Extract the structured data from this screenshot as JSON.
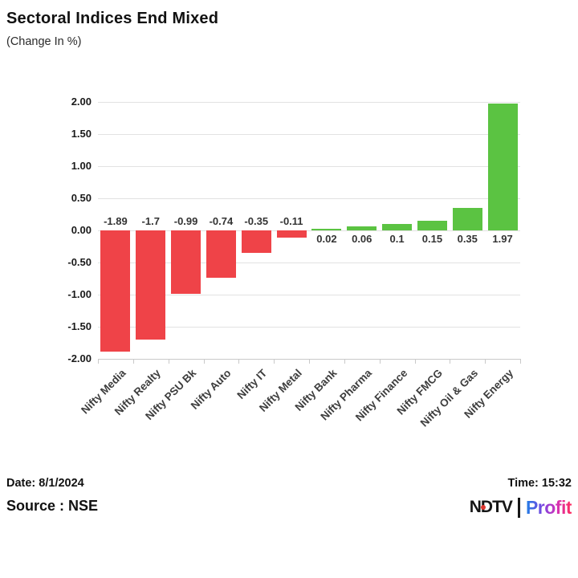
{
  "header": {
    "title": "Sectoral Indices End Mixed",
    "subtitle": "(Change In %)"
  },
  "chart_data": {
    "type": "bar",
    "title": "Sectoral Indices End Mixed",
    "subtitle": "(Change In %)",
    "categories": [
      "Nifty Media",
      "Nifty Realty",
      "Nifty PSU Bk",
      "Nifty Auto",
      "Nifty IT",
      "Nifty Metal",
      "Nifty Bank",
      "Nifty Pharma",
      "Nifty Finance",
      "Nifty FMCG",
      "Nifty Oil & Gas",
      "Nifty Energy"
    ],
    "values": [
      -1.89,
      -1.7,
      -0.99,
      -0.74,
      -0.35,
      -0.11,
      0.02,
      0.06,
      0.1,
      0.15,
      0.35,
      1.97
    ],
    "value_labels": [
      "-1.89",
      "-1.7",
      "-0.99",
      "-0.74",
      "-0.35",
      "-0.11",
      "0.02",
      "0.06",
      "0.1",
      "0.15",
      "0.35",
      "1.97"
    ],
    "ylim": [
      -2,
      2
    ],
    "yticks": [
      "2.00",
      "1.50",
      "1.00",
      "0.50",
      "0.00",
      "-0.50",
      "-1.00",
      "-1.50",
      "-2.00"
    ],
    "grid": true,
    "legend": "none",
    "colors": {
      "positive": "#5bc342",
      "negative": "#ef4348"
    }
  },
  "footer": {
    "date_label": "Date: 8/1/2024",
    "time_label": "Time: 15:32",
    "source_label": "Source : NSE",
    "logo": {
      "ndtv": "NDTV",
      "profit": "Profit"
    }
  }
}
